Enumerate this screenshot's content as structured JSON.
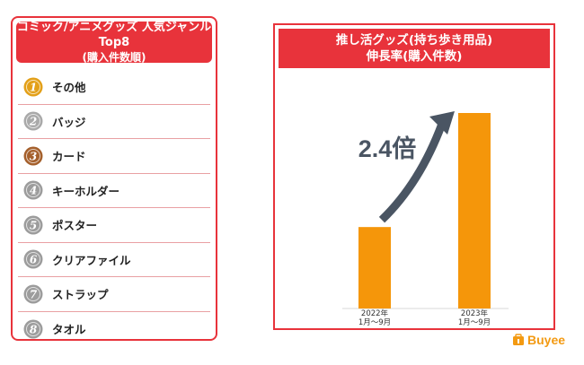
{
  "ranking": {
    "title_line1": "コミック/アニメグッズ 人気ジャンルTop8",
    "title_line2": "(購入件数順)",
    "items": [
      {
        "rank": "1",
        "label": "その他",
        "medal": "gold"
      },
      {
        "rank": "2",
        "label": "バッジ",
        "medal": "silver"
      },
      {
        "rank": "3",
        "label": "カード",
        "medal": "bronze"
      },
      {
        "rank": "4",
        "label": "キーホルダー",
        "medal": "gray"
      },
      {
        "rank": "5",
        "label": "ポスター",
        "medal": "gray"
      },
      {
        "rank": "6",
        "label": "クリアファイル",
        "medal": "gray"
      },
      {
        "rank": "7",
        "label": "ストラップ",
        "medal": "gray"
      },
      {
        "rank": "8",
        "label": "タオル",
        "medal": "gray"
      }
    ],
    "medal_colors": {
      "gold": "#e3a019",
      "silver": "#a9a9a9",
      "bronze": "#a5602c",
      "gray": "#9c9c9c"
    }
  },
  "chart_data": {
    "type": "bar",
    "title_line1": "推し活グッズ(持ち歩き用品)",
    "title_line2": "伸長率(購入件数)",
    "categories": [
      {
        "line1": "2022年",
        "line2": "1月〜9月"
      },
      {
        "line1": "2023年",
        "line2": "1月〜9月"
      }
    ],
    "values": [
      1,
      2.4
    ],
    "annotation": "2.4倍",
    "bar_color": "#f5960a",
    "arrow_color": "#4a5563",
    "accent": "#e8333b"
  },
  "logo": {
    "text": "Buyee",
    "color": "#f39a12"
  }
}
